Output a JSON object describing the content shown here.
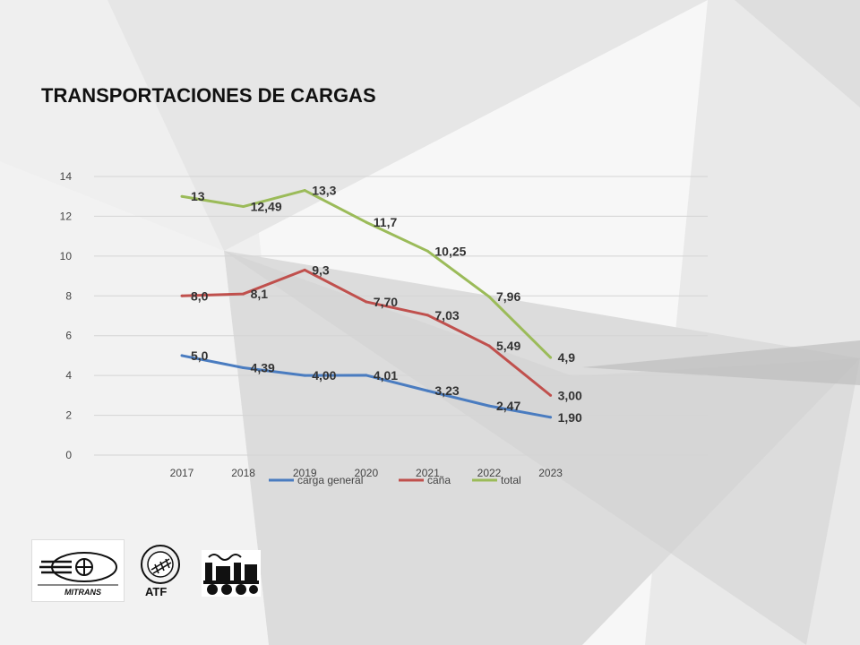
{
  "slide": {
    "title": "TRANSPORTACIONES DE CARGAS",
    "logos": [
      {
        "name": "mitrans-logo",
        "text": "MITRANS"
      },
      {
        "name": "atf-logo",
        "text": "ATF"
      },
      {
        "name": "train-logo",
        "text": ""
      }
    ]
  },
  "chart_data": {
    "type": "line",
    "x": [
      "2017",
      "2018",
      "2019",
      "2020",
      "2021",
      "2022",
      "2023"
    ],
    "ylim": [
      0,
      14
    ],
    "yticks": [
      "0",
      "2",
      "4",
      "6",
      "8",
      "10",
      "12",
      "14"
    ],
    "grid": true,
    "legend": "bottom",
    "series": [
      {
        "name": "carga general",
        "color": "#4a7cc0",
        "values": [
          5.0,
          4.39,
          4.0,
          4.01,
          3.23,
          2.47,
          1.9
        ],
        "labels": [
          "5,0",
          "4,39",
          "4,00",
          "4,01",
          "3,23",
          "2,47",
          "1,90"
        ]
      },
      {
        "name": "caña",
        "color": "#c0504d",
        "values": [
          8.0,
          8.1,
          9.3,
          7.7,
          7.03,
          5.49,
          3.0
        ],
        "labels": [
          "8,0",
          "8,1",
          "9,3",
          "7,70",
          "7,03",
          "5,49",
          "3,00"
        ]
      },
      {
        "name": "total",
        "color": "#9bbb59",
        "values": [
          13,
          12.49,
          13.3,
          11.7,
          10.25,
          7.96,
          4.9
        ],
        "labels": [
          "13",
          "12,49",
          "13,3",
          "11,7",
          "10,25",
          "7,96",
          "4,9"
        ]
      }
    ]
  }
}
